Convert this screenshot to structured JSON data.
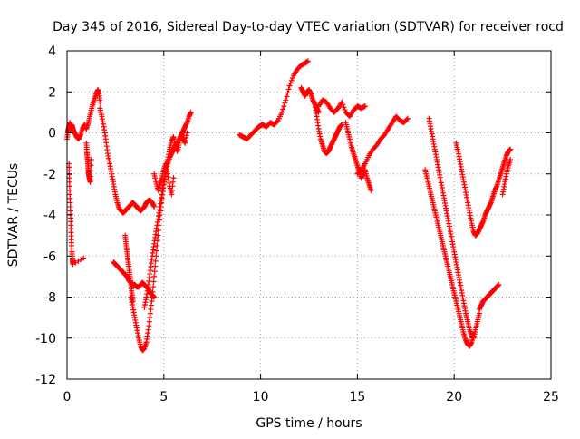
{
  "chart_data": {
    "type": "scatter",
    "title": "Day 345 of 2016, Sidereal Day-to-day VTEC variation (SDTVAR) for receiver rocd",
    "xlabel": "GPS time / hours",
    "ylabel": "SDTVAR / TECUs",
    "xlim": [
      0,
      25
    ],
    "ylim": [
      -12,
      4
    ],
    "xticks": [
      0,
      5,
      10,
      15,
      20,
      25
    ],
    "xtick_labels": [
      "0",
      "5",
      "10",
      "15",
      "20",
      "25"
    ],
    "yticks": [
      -12,
      -10,
      -8,
      -6,
      -4,
      -2,
      0,
      2,
      4
    ],
    "ytick_labels": [
      "-12",
      "-10",
      "-8",
      "-6",
      "-4",
      "-2",
      "0",
      "2",
      "4"
    ],
    "grid": true,
    "marker": "+",
    "color": "#ff0000",
    "series": [
      {
        "x": [
          0.0,
          0.05,
          0.1,
          0.15,
          0.2,
          0.25,
          0.3,
          0.4,
          0.5,
          0.6,
          0.7,
          0.8,
          0.9,
          1.0,
          1.1,
          1.2,
          1.3,
          1.4,
          1.5,
          1.6,
          1.65,
          1.7
        ],
        "y": [
          -0.3,
          0.1,
          0.3,
          0.5,
          0.2,
          0.4,
          0.2,
          0.0,
          -0.2,
          -0.3,
          -0.1,
          0.2,
          0.4,
          0.2,
          0.5,
          0.9,
          1.3,
          1.6,
          1.9,
          2.1,
          1.9,
          1.5
        ]
      },
      {
        "x": [
          0.1,
          0.12,
          0.15,
          0.18,
          0.2,
          0.22,
          0.25,
          0.28,
          0.3,
          0.85
        ],
        "y": [
          -1.5,
          -2.2,
          -3.0,
          -3.8,
          -4.5,
          -5.2,
          -5.8,
          -6.2,
          -6.4,
          -6.1
        ]
      },
      {
        "x": [
          1.0,
          1.02,
          1.05,
          1.08,
          1.1,
          1.12,
          1.15,
          1.18,
          1.2,
          1.25
        ],
        "y": [
          -0.5,
          -0.9,
          -1.2,
          -1.5,
          -1.8,
          -2.0,
          -2.2,
          -2.3,
          -2.4,
          -1.3
        ]
      },
      {
        "x": [
          1.7,
          1.8,
          1.9,
          2.0,
          2.1,
          2.2,
          2.3,
          2.4,
          2.5,
          2.6,
          2.7,
          2.8,
          2.9,
          3.0,
          3.1,
          3.2,
          3.3,
          3.4,
          3.5,
          3.6,
          3.7,
          3.8,
          3.9,
          4.0,
          4.1,
          4.2,
          4.3,
          4.4,
          4.5
        ],
        "y": [
          1.2,
          0.8,
          0.3,
          -0.3,
          -1.0,
          -1.5,
          -2.0,
          -2.5,
          -3.0,
          -3.4,
          -3.7,
          -3.8,
          -3.9,
          -3.8,
          -3.7,
          -3.6,
          -3.5,
          -3.4,
          -3.5,
          -3.6,
          -3.7,
          -3.8,
          -3.7,
          -3.6,
          -3.4,
          -3.3,
          -3.3,
          -3.4,
          -3.6
        ]
      },
      {
        "x": [
          2.4,
          2.5,
          2.6,
          2.7,
          2.8,
          2.9,
          3.0,
          3.1,
          3.2,
          3.3,
          3.4,
          3.5,
          3.6,
          3.7,
          3.8,
          3.9,
          4.0,
          4.1,
          4.2,
          4.3,
          4.4,
          4.5
        ],
        "y": [
          -6.3,
          -6.4,
          -6.5,
          -6.6,
          -6.7,
          -6.8,
          -6.9,
          -7.0,
          -7.2,
          -7.3,
          -7.4,
          -7.4,
          -7.5,
          -7.5,
          -7.4,
          -7.3,
          -7.4,
          -7.5,
          -7.6,
          -7.8,
          -7.9,
          -8.0
        ]
      },
      {
        "x": [
          3.0,
          3.05,
          3.1,
          3.15,
          3.2,
          3.25,
          3.3,
          3.35,
          3.4
        ],
        "y": [
          -5.0,
          -5.4,
          -5.8,
          -6.2,
          -6.6,
          -7.0,
          -7.4,
          -7.8,
          -8.2
        ]
      },
      {
        "x": [
          3.3,
          3.4,
          3.5,
          3.6,
          3.7,
          3.8,
          3.9,
          4.0,
          4.1,
          4.2,
          4.3,
          4.4,
          4.5,
          4.6,
          4.7,
          4.8,
          4.9,
          5.0,
          5.1,
          5.2,
          5.3,
          5.4,
          5.5,
          5.6,
          5.7,
          5.8,
          5.9,
          6.0,
          6.1,
          6.2,
          6.3,
          6.4
        ],
        "y": [
          -8.0,
          -8.5,
          -9.0,
          -9.5,
          -10.0,
          -10.4,
          -10.6,
          -10.5,
          -10.2,
          -9.6,
          -8.8,
          -8.0,
          -7.0,
          -6.0,
          -5.0,
          -4.0,
          -3.2,
          -2.5,
          -2.0,
          -1.5,
          -1.2,
          -1.0,
          -0.8,
          -0.6,
          -0.5,
          -0.3,
          -0.1,
          0.1,
          0.3,
          0.5,
          0.8,
          1.0
        ]
      },
      {
        "x": [
          4.0,
          4.1,
          4.2,
          4.3,
          4.4,
          4.5,
          4.6,
          4.7,
          4.8,
          4.9,
          5.0,
          5.1,
          5.2,
          5.3,
          5.4,
          5.5,
          5.6,
          5.7,
          5.8,
          5.9,
          6.0,
          6.1,
          6.2
        ],
        "y": [
          -8.5,
          -8.0,
          -7.4,
          -6.7,
          -6.0,
          -5.4,
          -4.8,
          -4.2,
          -3.6,
          -3.0,
          -2.4,
          -1.8,
          -1.3,
          -0.8,
          -0.4,
          -0.2,
          -0.6,
          -0.9,
          -0.5,
          0.0,
          -0.3,
          -0.5,
          0.0
        ]
      },
      {
        "x": [
          4.5,
          4.6,
          4.7,
          4.8,
          4.9,
          5.0,
          5.1,
          5.2,
          5.3,
          5.4,
          5.5
        ],
        "y": [
          -2.0,
          -2.4,
          -2.8,
          -2.5,
          -2.2,
          -1.8,
          -1.5,
          -2.0,
          -2.6,
          -3.0,
          -2.2
        ]
      },
      {
        "x": [
          8.9,
          9.1,
          9.3,
          9.5,
          9.7,
          9.9,
          10.1,
          10.3,
          10.5,
          10.7,
          10.9,
          11.1,
          11.3,
          11.5,
          11.7,
          11.9,
          12.1,
          12.3,
          12.45
        ],
        "y": [
          -0.1,
          -0.2,
          -0.3,
          -0.1,
          0.1,
          0.3,
          0.4,
          0.3,
          0.5,
          0.4,
          0.6,
          1.0,
          1.6,
          2.3,
          2.8,
          3.1,
          3.3,
          3.4,
          3.5
        ]
      },
      {
        "x": [
          12.1,
          12.2,
          12.3,
          12.4,
          12.5,
          12.6,
          12.7,
          12.8,
          12.9,
          13.0
        ],
        "y": [
          2.2,
          2.0,
          1.8,
          2.0,
          2.1,
          1.9,
          1.6,
          1.4,
          1.2,
          1.0
        ]
      },
      {
        "x": [
          12.8,
          12.9,
          13.0,
          13.1,
          13.2,
          13.3,
          13.4,
          13.5,
          13.6,
          13.7,
          13.8,
          13.9,
          14.0,
          14.1,
          14.2
        ],
        "y": [
          1.4,
          0.8,
          0.2,
          -0.3,
          -0.6,
          -0.9,
          -1.0,
          -0.9,
          -0.7,
          -0.5,
          -0.3,
          -0.1,
          0.1,
          0.3,
          0.4
        ]
      },
      {
        "x": [
          13.0,
          13.2,
          13.4,
          13.6,
          13.8,
          14.0,
          14.2,
          14.4,
          14.6,
          14.8,
          15.0,
          15.2,
          15.4
        ],
        "y": [
          1.3,
          1.6,
          1.5,
          1.2,
          1.0,
          1.2,
          1.5,
          1.0,
          0.8,
          1.1,
          1.3,
          1.2,
          1.3
        ]
      },
      {
        "x": [
          14.4,
          14.5,
          14.6,
          14.7,
          14.8,
          14.9,
          15.0,
          15.1,
          15.2,
          15.3,
          15.4,
          15.5,
          15.6,
          15.7
        ],
        "y": [
          0.5,
          0.1,
          -0.3,
          -0.7,
          -1.0,
          -1.3,
          -1.6,
          -1.9,
          -2.2,
          -2.0,
          -1.8,
          -2.2,
          -2.5,
          -2.8
        ]
      },
      {
        "x": [
          15.0,
          15.2,
          15.4,
          15.6,
          15.8,
          16.0,
          16.2,
          16.4,
          16.6,
          16.8,
          17.0,
          17.2,
          17.4,
          17.6
        ],
        "y": [
          -2.0,
          -1.8,
          -1.5,
          -1.1,
          -0.8,
          -0.6,
          -0.3,
          -0.1,
          0.2,
          0.5,
          0.8,
          0.6,
          0.5,
          0.7
        ]
      },
      {
        "x": [
          18.5,
          18.6,
          18.7,
          18.8,
          18.9,
          19.0,
          19.1,
          19.2,
          19.3,
          19.4,
          19.5,
          19.6,
          19.7,
          19.8,
          19.9,
          20.0,
          20.1,
          20.2,
          20.3,
          20.4,
          20.5,
          20.6,
          20.7,
          20.8,
          20.9,
          21.0
        ],
        "y": [
          -1.8,
          -2.2,
          -2.6,
          -3.0,
          -3.4,
          -3.8,
          -4.2,
          -4.6,
          -5.0,
          -5.4,
          -5.8,
          -6.2,
          -6.6,
          -7.0,
          -7.4,
          -7.8,
          -8.2,
          -8.6,
          -9.0,
          -9.4,
          -9.8,
          -10.1,
          -10.3,
          -10.4,
          -10.2,
          -9.8
        ]
      },
      {
        "x": [
          18.7,
          18.8,
          18.9,
          19.0,
          19.1,
          19.2,
          19.3,
          19.4,
          19.5,
          19.6,
          19.7,
          19.8,
          19.9,
          20.0,
          20.1,
          20.2,
          20.3,
          20.4,
          20.5,
          20.6,
          20.7,
          20.8,
          20.9,
          21.0,
          21.1,
          21.2,
          21.3
        ],
        "y": [
          0.7,
          0.2,
          -0.3,
          -0.8,
          -1.3,
          -1.8,
          -2.3,
          -2.8,
          -3.3,
          -3.8,
          -4.3,
          -4.8,
          -5.3,
          -5.8,
          -6.3,
          -6.8,
          -7.3,
          -7.8,
          -8.3,
          -8.8,
          -9.2,
          -9.6,
          -9.9,
          -10.0,
          -9.6,
          -9.2,
          -8.8
        ]
      },
      {
        "x": [
          20.1,
          20.2,
          20.3,
          20.4,
          20.5,
          20.6,
          20.7,
          20.8,
          20.9,
          21.0,
          21.1,
          21.2,
          21.3,
          21.4,
          21.5,
          21.6,
          21.7,
          21.8,
          21.9,
          22.0,
          22.1,
          22.2,
          22.3,
          22.4,
          22.5,
          22.6,
          22.7,
          22.8,
          22.9
        ],
        "y": [
          -0.5,
          -0.9,
          -1.4,
          -1.9,
          -2.4,
          -2.9,
          -3.4,
          -3.9,
          -4.4,
          -4.8,
          -5.0,
          -4.9,
          -4.7,
          -4.5,
          -4.3,
          -4.0,
          -3.8,
          -3.6,
          -3.4,
          -3.1,
          -2.8,
          -2.6,
          -2.3,
          -2.0,
          -1.7,
          -1.4,
          -1.1,
          -0.9,
          -0.8
        ]
      },
      {
        "x": [
          21.3,
          21.4,
          21.5,
          21.6,
          21.7,
          21.8,
          21.9,
          22.0,
          22.1,
          22.2,
          22.3
        ],
        "y": [
          -8.6,
          -8.4,
          -8.2,
          -8.1,
          -8.0,
          -7.9,
          -7.8,
          -7.7,
          -7.6,
          -7.5,
          -7.4
        ]
      },
      {
        "x": [
          22.5,
          22.6,
          22.7,
          22.8,
          22.9
        ],
        "y": [
          -3.0,
          -2.5,
          -2.0,
          -1.6,
          -1.3
        ]
      }
    ]
  }
}
